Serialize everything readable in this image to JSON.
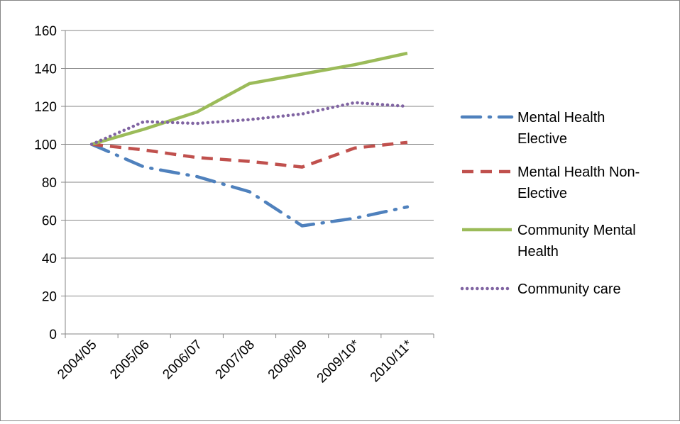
{
  "chart_data": {
    "type": "line",
    "title": "",
    "xlabel": "",
    "ylabel": "",
    "categories": [
      "2004/05",
      "2005/06",
      "2006/07",
      "2007/08",
      "2008/09",
      "2009/10*",
      "2010/11*"
    ],
    "ylim": [
      0,
      160
    ],
    "yticks": [
      0,
      20,
      40,
      60,
      80,
      100,
      120,
      140,
      160
    ],
    "grid": true,
    "legend_position": "right",
    "series": [
      {
        "name": "Mental Health Elective",
        "legend_lines": [
          "Mental Health",
          "Elective"
        ],
        "color": "#4F81BD",
        "dash": "long-dash-dot",
        "values": [
          100,
          88,
          83,
          75,
          57,
          61,
          67
        ]
      },
      {
        "name": "Mental Health Non-Elective",
        "legend_lines": [
          "Mental Health Non-",
          "Elective"
        ],
        "color": "#C0504D",
        "dash": "dash",
        "values": [
          100,
          97,
          93,
          91,
          88,
          98,
          101
        ]
      },
      {
        "name": "Community Mental Health",
        "legend_lines": [
          "Community Mental",
          "Health"
        ],
        "color": "#9BBB59",
        "dash": "solid",
        "values": [
          100,
          108,
          117,
          132,
          137,
          142,
          148
        ]
      },
      {
        "name": "Community care",
        "legend_lines": [
          "Community care"
        ],
        "color": "#8064A2",
        "dash": "dot",
        "values": [
          100,
          112,
          111,
          113,
          116,
          122,
          120
        ]
      }
    ]
  }
}
